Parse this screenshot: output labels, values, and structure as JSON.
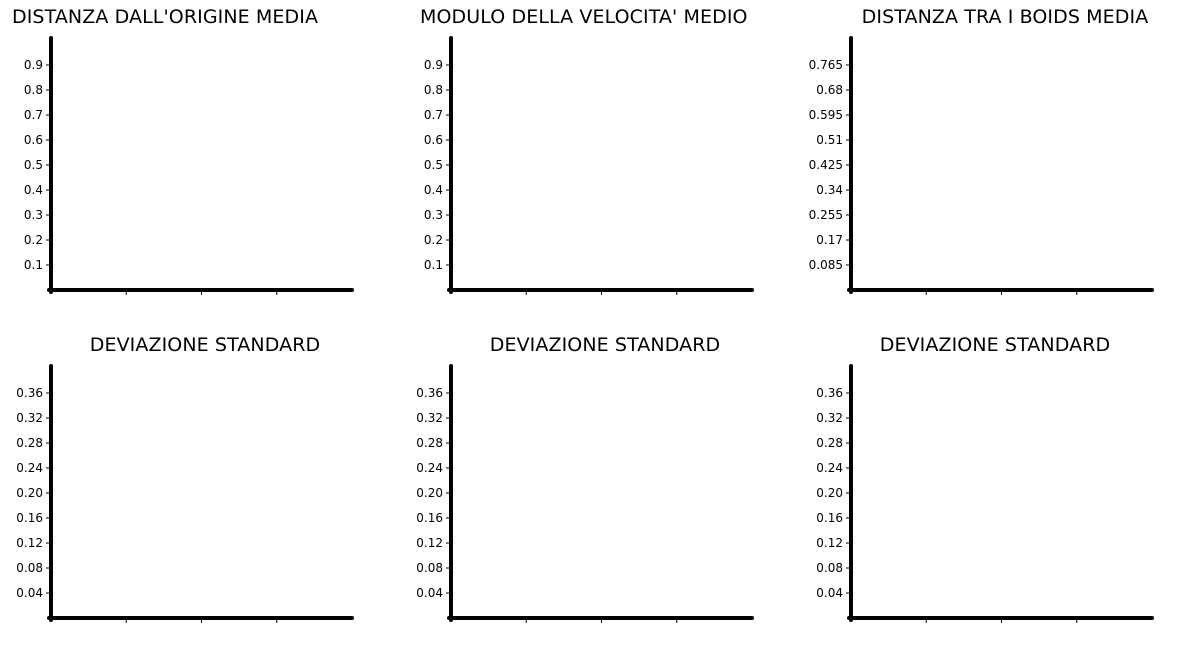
{
  "chart_data": [
    {
      "type": "line",
      "title": "DISTANZA DALL'ORIGINE MEDIA",
      "xlabel": "",
      "ylabel": "",
      "yticks": [
        "0.1",
        "0.2",
        "0.3",
        "0.4",
        "0.5",
        "0.6",
        "0.7",
        "0.8",
        "0.9"
      ],
      "ylim": [
        0,
        1
      ],
      "xticks": 3,
      "series": [],
      "grid": false
    },
    {
      "type": "line",
      "title": "MODULO DELLA VELOCITA' MEDIO",
      "xlabel": "",
      "ylabel": "",
      "yticks": [
        "0.1",
        "0.2",
        "0.3",
        "0.4",
        "0.5",
        "0.6",
        "0.7",
        "0.8",
        "0.9"
      ],
      "ylim": [
        0,
        1
      ],
      "xticks": 3,
      "series": [],
      "grid": false
    },
    {
      "type": "line",
      "title": "DISTANZA TRA I BOIDS MEDIA",
      "xlabel": "",
      "ylabel": "",
      "yticks": [
        "0.085",
        "0.17",
        "0.255",
        "0.34",
        "0.425",
        "0.51",
        "0.595",
        "0.68",
        "0.765"
      ],
      "ylim": [
        0,
        0.85
      ],
      "xticks": 3,
      "series": [],
      "grid": false
    },
    {
      "type": "line",
      "title": "DEVIAZIONE STANDARD",
      "xlabel": "",
      "ylabel": "",
      "yticks": [
        "0.04",
        "0.08",
        "0.12",
        "0.16",
        "0.20",
        "0.24",
        "0.28",
        "0.32",
        "0.36"
      ],
      "ylim": [
        0,
        0.4
      ],
      "xticks": 3,
      "series": [],
      "grid": false
    },
    {
      "type": "line",
      "title": "DEVIAZIONE STANDARD",
      "xlabel": "",
      "ylabel": "",
      "yticks": [
        "0.04",
        "0.08",
        "0.12",
        "0.16",
        "0.20",
        "0.24",
        "0.28",
        "0.32",
        "0.36"
      ],
      "ylim": [
        0,
        0.4
      ],
      "xticks": 3,
      "series": [],
      "grid": false
    },
    {
      "type": "line",
      "title": "DEVIAZIONE STANDARD",
      "xlabel": "",
      "ylabel": "",
      "yticks": [
        "0.04",
        "0.08",
        "0.12",
        "0.16",
        "0.20",
        "0.24",
        "0.28",
        "0.32",
        "0.36"
      ],
      "ylim": [
        0,
        0.4
      ],
      "xticks": 3,
      "series": [],
      "grid": false
    }
  ]
}
